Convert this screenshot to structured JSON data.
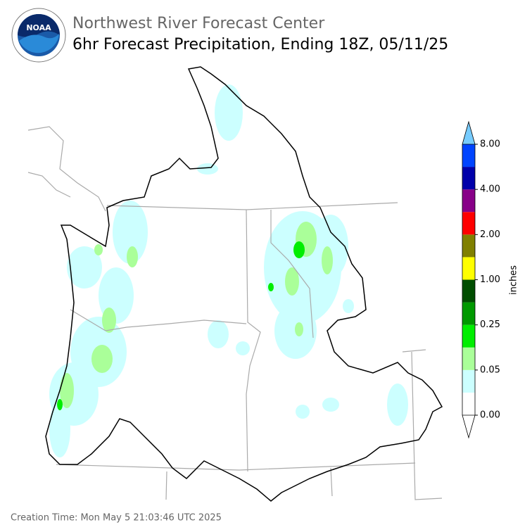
{
  "header": {
    "title": "Northwest River Forecast Center",
    "subtitle": "6hr Forecast Precipitation, Ending 18Z, 05/11/25",
    "logo_text": "NOAA"
  },
  "colorbar": {
    "label": "inches",
    "ticks": [
      {
        "value": 0,
        "label": "0.00"
      },
      {
        "value": 0.05,
        "label": "0.05"
      },
      {
        "value": 0.25,
        "label": "0.25"
      },
      {
        "value": 1,
        "label": "1.00"
      },
      {
        "value": 2,
        "label": "2.00"
      },
      {
        "value": 4,
        "label": "4.00"
      },
      {
        "value": 8,
        "label": "8.00"
      }
    ],
    "colors": [
      "#ffffff",
      "#ccffff",
      "#aaff99",
      "#00ee00",
      "#009900",
      "#004d00",
      "#ffff00",
      "#808000",
      "#ff0000",
      "#880088",
      "#0000aa",
      "#0044ff"
    ],
    "under_color": "#ffffff",
    "over_color": "#77ccff"
  },
  "footer": {
    "creation_time": "Creation Time: Mon May 5 21:03:46 UTC 2025"
  }
}
